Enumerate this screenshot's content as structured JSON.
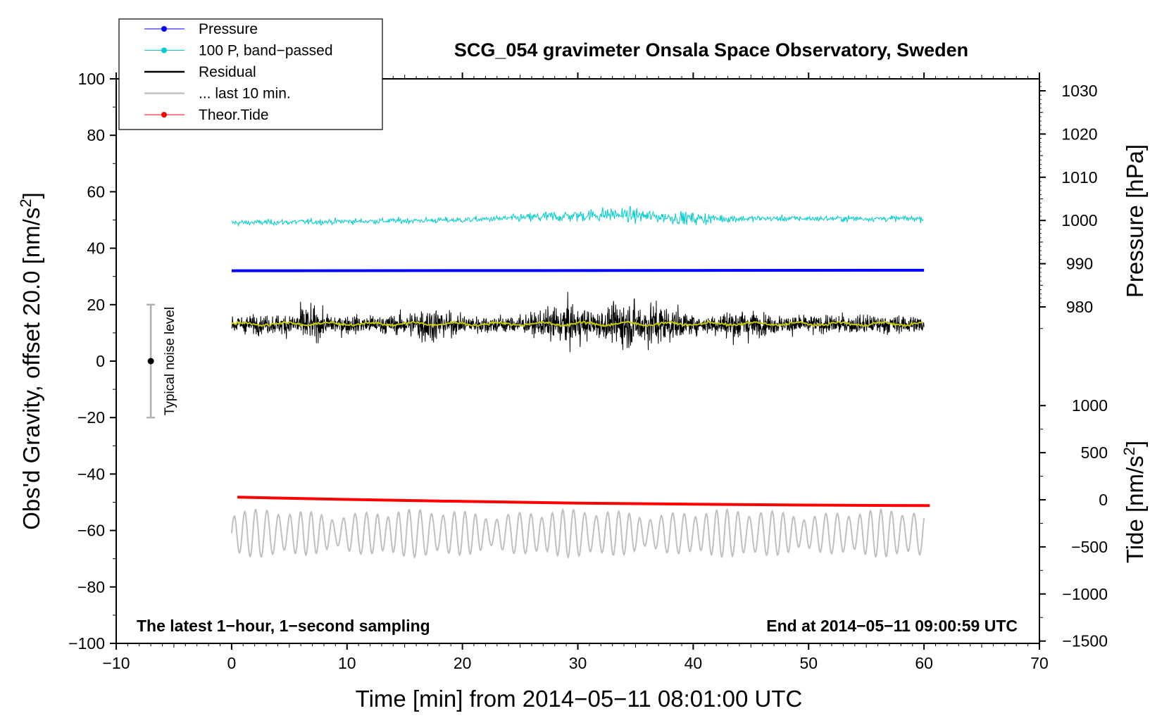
{
  "chart_data": {
    "type": "line",
    "title": "SCG_054 gravimeter Onsala Space Observatory, Sweden",
    "xlabel": "Time [min] from 2014−05−11 08:01:00 UTC",
    "ylabel_left_main": "Obs'd Gravity, offset 20.0 [nm/s",
    "ylabel_left_sup": "2",
    "ylabel_left_end": "]",
    "ylabel_right_top": "Pressure [hPa]",
    "ylabel_right_bottom_main": "Tide [nm/s",
    "ylabel_right_bottom_sup": "2",
    "ylabel_right_bottom_end": "]",
    "xlim": [
      -10,
      70
    ],
    "ylim_left": [
      -100,
      100
    ],
    "x_ticks": [
      "−10",
      "0",
      "10",
      "20",
      "30",
      "40",
      "50",
      "60",
      "70"
    ],
    "x_tick_values": [
      -10,
      0,
      10,
      20,
      30,
      40,
      50,
      60,
      70
    ],
    "y_left_ticks": [
      "−100",
      "−80",
      "−60",
      "−40",
      "−20",
      "0",
      "20",
      "40",
      "60",
      "80",
      "100"
    ],
    "y_left_tick_values": [
      -100,
      -80,
      -60,
      -40,
      -20,
      0,
      20,
      40,
      60,
      80,
      100
    ],
    "y_right_pressure_ticks": [
      "980",
      "990",
      "1000",
      "1010",
      "1020",
      "1030"
    ],
    "y_right_pressure_values": [
      980,
      990,
      1000,
      1010,
      1020,
      1030
    ],
    "y_right_tide_ticks": [
      "−1500",
      "−1000",
      "−500",
      "0",
      "500",
      "1000"
    ],
    "y_right_tide_values": [
      -1500,
      -1000,
      -500,
      0,
      500,
      1000
    ],
    "annotation_left": "The latest 1−hour, 1−second sampling",
    "annotation_right": "End at 2014−05−11 09:00:59 UTC",
    "noise_bar": {
      "label": "Typical noise level",
      "x": -7,
      "center": 0,
      "low": -20,
      "high": 20
    },
    "legend": [
      {
        "label": "Pressure",
        "color": "#0000ff",
        "marker": true
      },
      {
        "label": "100 P, band−passed",
        "color": "#00cccc",
        "marker": true
      },
      {
        "label": "Residual",
        "color": "#000000",
        "marker": false
      },
      {
        "label": "... last 10 min.",
        "color": "#c0c0c0",
        "marker": false
      },
      {
        "label": "Theor.Tide",
        "color": "#ff0000",
        "marker": true
      }
    ],
    "series": [
      {
        "name": "Pressure",
        "color": "#0000ff",
        "x": [
          0,
          60
        ],
        "y": [
          32.0,
          32.2
        ]
      },
      {
        "name": "100 P, band−passed",
        "color": "#00cccc",
        "x": [
          0,
          10,
          20,
          27,
          33,
          40,
          50,
          60
        ],
        "y": [
          49,
          49.5,
          50,
          51,
          52,
          50.5,
          50.5,
          50.5
        ]
      },
      {
        "name": "Residual",
        "color": "#000000",
        "x": [
          0,
          60
        ],
        "y": [
          13,
          13
        ]
      },
      {
        "name": "Residual (smoothed)",
        "color": "#c8c800",
        "x": [
          0,
          60
        ],
        "y": [
          13.2,
          13.2
        ]
      },
      {
        "name": "... last 10 min.",
        "color": "#c0c0c0",
        "x": [
          0,
          60
        ],
        "y": [
          -61,
          -61
        ]
      },
      {
        "name": "Theor.Tide",
        "color": "#ff0000",
        "x": [
          0.5,
          10,
          20,
          30,
          40,
          50,
          60.5
        ],
        "y": [
          -48.2,
          -49,
          -49.7,
          -50.3,
          -50.7,
          -51,
          -51.2
        ]
      }
    ],
    "grid": false,
    "legend_position": "top-left"
  }
}
